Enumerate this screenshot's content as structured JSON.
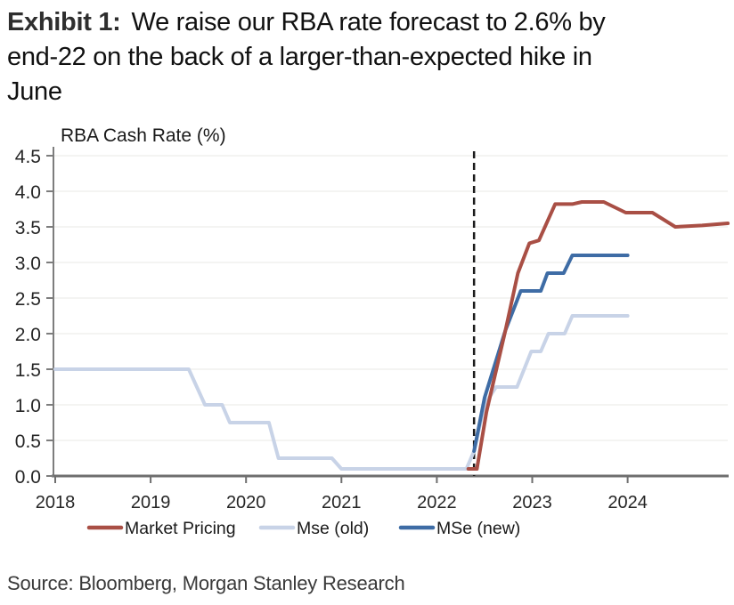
{
  "title": {
    "label": "Exhibit 1:",
    "lines": [
      "We raise our RBA rate forecast to 2.6% by",
      "end-22 on the back of a larger-than-expected hike in",
      "June"
    ]
  },
  "source": "Source: Bloomberg, Morgan Stanley Research",
  "chart_data": {
    "type": "line",
    "title": "RBA Cash Rate (%)",
    "xlabel": "",
    "ylabel": "RBA Cash Rate (%)",
    "xlim": [
      2018,
      2025.1
    ],
    "ylim": [
      0,
      4.5
    ],
    "grid": true,
    "x_tick_labels": [
      "2018",
      "2019",
      "2020",
      "2021",
      "2022",
      "2023",
      "2024"
    ],
    "y_tick_labels": [
      "0.0",
      "0.5",
      "1.0",
      "1.5",
      "2.0",
      "2.5",
      "3.0",
      "3.5",
      "4.0",
      "4.5"
    ],
    "annotation": {
      "type": "vertical-dashed-line",
      "x": 2022.39,
      "color": "#1a1a1a"
    },
    "legend_position": "bottom",
    "series": [
      {
        "name": "Mse (old)",
        "color": "#C8D3E7",
        "points": [
          [
            2018.0,
            1.5
          ],
          [
            2019.4,
            1.5
          ],
          [
            2019.57,
            1.0
          ],
          [
            2019.75,
            1.0
          ],
          [
            2019.83,
            0.75
          ],
          [
            2020.24,
            0.75
          ],
          [
            2020.34,
            0.25
          ],
          [
            2020.9,
            0.25
          ],
          [
            2021.0,
            0.1
          ],
          [
            2022.31,
            0.1
          ],
          [
            2022.39,
            0.35
          ],
          [
            2022.5,
            1.0
          ],
          [
            2022.62,
            1.25
          ],
          [
            2022.84,
            1.25
          ],
          [
            2022.99,
            1.75
          ],
          [
            2023.09,
            1.75
          ],
          [
            2023.17,
            2.0
          ],
          [
            2023.34,
            2.0
          ],
          [
            2023.42,
            2.25
          ],
          [
            2024.0,
            2.25
          ]
        ]
      },
      {
        "name": "MSe (new)",
        "color": "#3E6CA5",
        "points": [
          [
            2022.39,
            0.35
          ],
          [
            2022.5,
            1.1
          ],
          [
            2022.72,
            2.05
          ],
          [
            2022.88,
            2.6
          ],
          [
            2023.09,
            2.6
          ],
          [
            2023.16,
            2.85
          ],
          [
            2023.33,
            2.85
          ],
          [
            2023.42,
            3.1
          ],
          [
            2024.0,
            3.1
          ]
        ]
      },
      {
        "name": "Market Pricing",
        "color": "#A94F45",
        "points": [
          [
            2022.33,
            0.1
          ],
          [
            2022.42,
            0.1
          ],
          [
            2022.52,
            0.9
          ],
          [
            2022.72,
            2.05
          ],
          [
            2022.85,
            2.85
          ],
          [
            2022.97,
            3.27
          ],
          [
            2023.07,
            3.31
          ],
          [
            2023.24,
            3.82
          ],
          [
            2023.42,
            3.82
          ],
          [
            2023.52,
            3.85
          ],
          [
            2023.75,
            3.85
          ],
          [
            2023.98,
            3.7
          ],
          [
            2024.26,
            3.7
          ],
          [
            2024.5,
            3.5
          ],
          [
            2024.78,
            3.52
          ],
          [
            2025.05,
            3.55
          ]
        ]
      }
    ],
    "legend": [
      {
        "name": "Market Pricing",
        "color": "#A94F45"
      },
      {
        "name": "Mse (old)",
        "color": "#C8D3E7"
      },
      {
        "name": "MSe (new)",
        "color": "#3E6CA5"
      }
    ]
  }
}
